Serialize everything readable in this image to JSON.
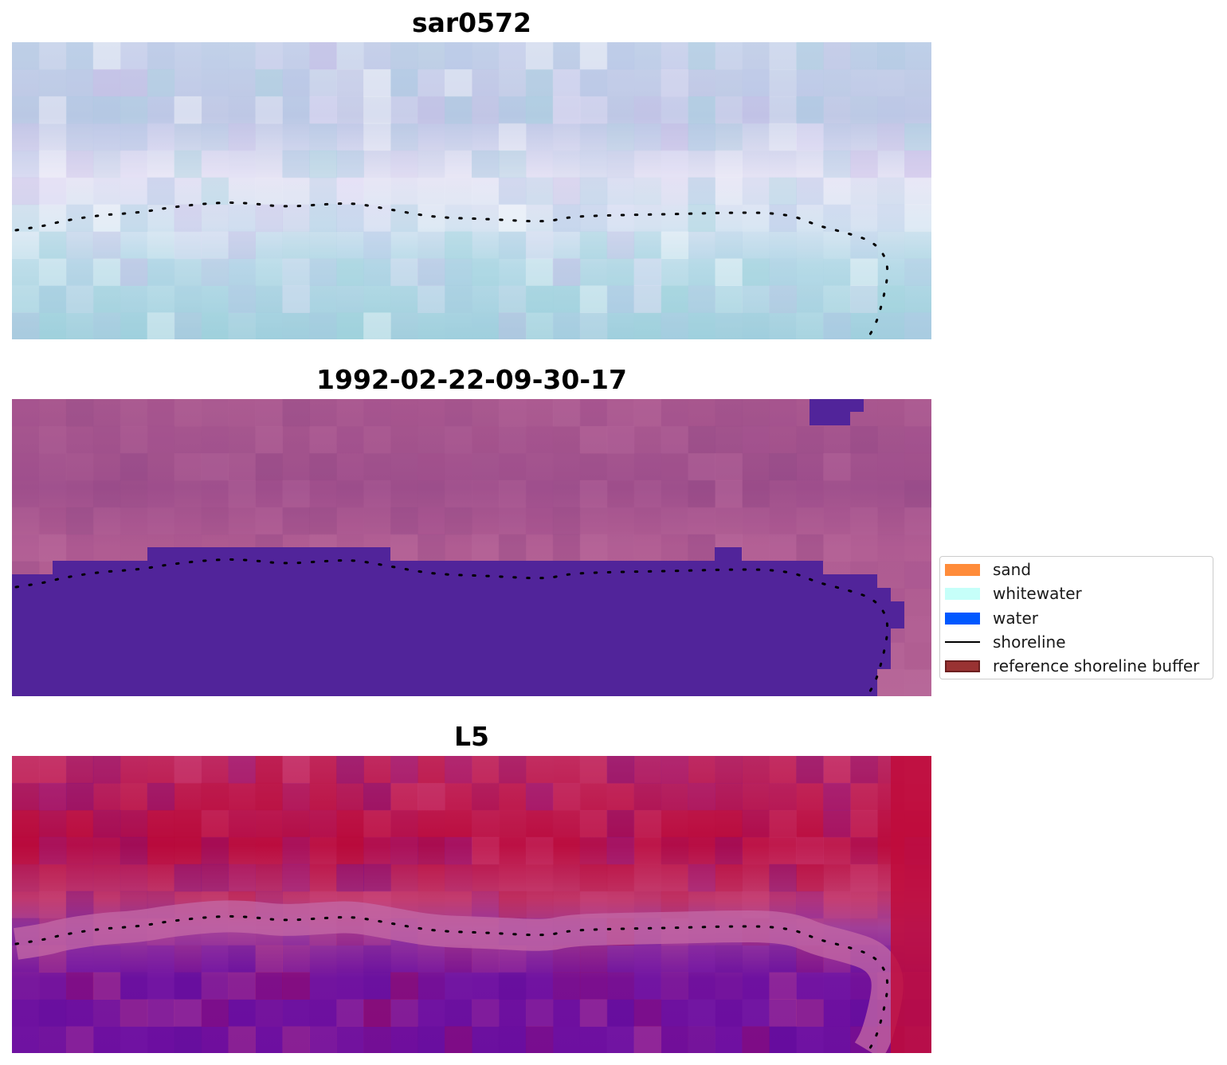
{
  "panels": [
    {
      "title": "sar0572"
    },
    {
      "title": "1992-02-22-09-30-17"
    },
    {
      "title": "L5"
    }
  ],
  "legend": {
    "items": [
      {
        "label": "sand",
        "type": "patch",
        "color": "#ff8c3a"
      },
      {
        "label": "whitewater",
        "type": "patch",
        "color": "#c6fff9"
      },
      {
        "label": "water",
        "type": "patch",
        "color": "#0058ff"
      },
      {
        "label": "shoreline",
        "type": "line",
        "color": "#000000"
      },
      {
        "label": "reference shoreline buffer",
        "type": "patch",
        "color": "#993232",
        "edge": "#6b1f1f"
      }
    ]
  },
  "colors": {
    "water_class": "#51249a",
    "shoreline_dots": "#000000"
  }
}
